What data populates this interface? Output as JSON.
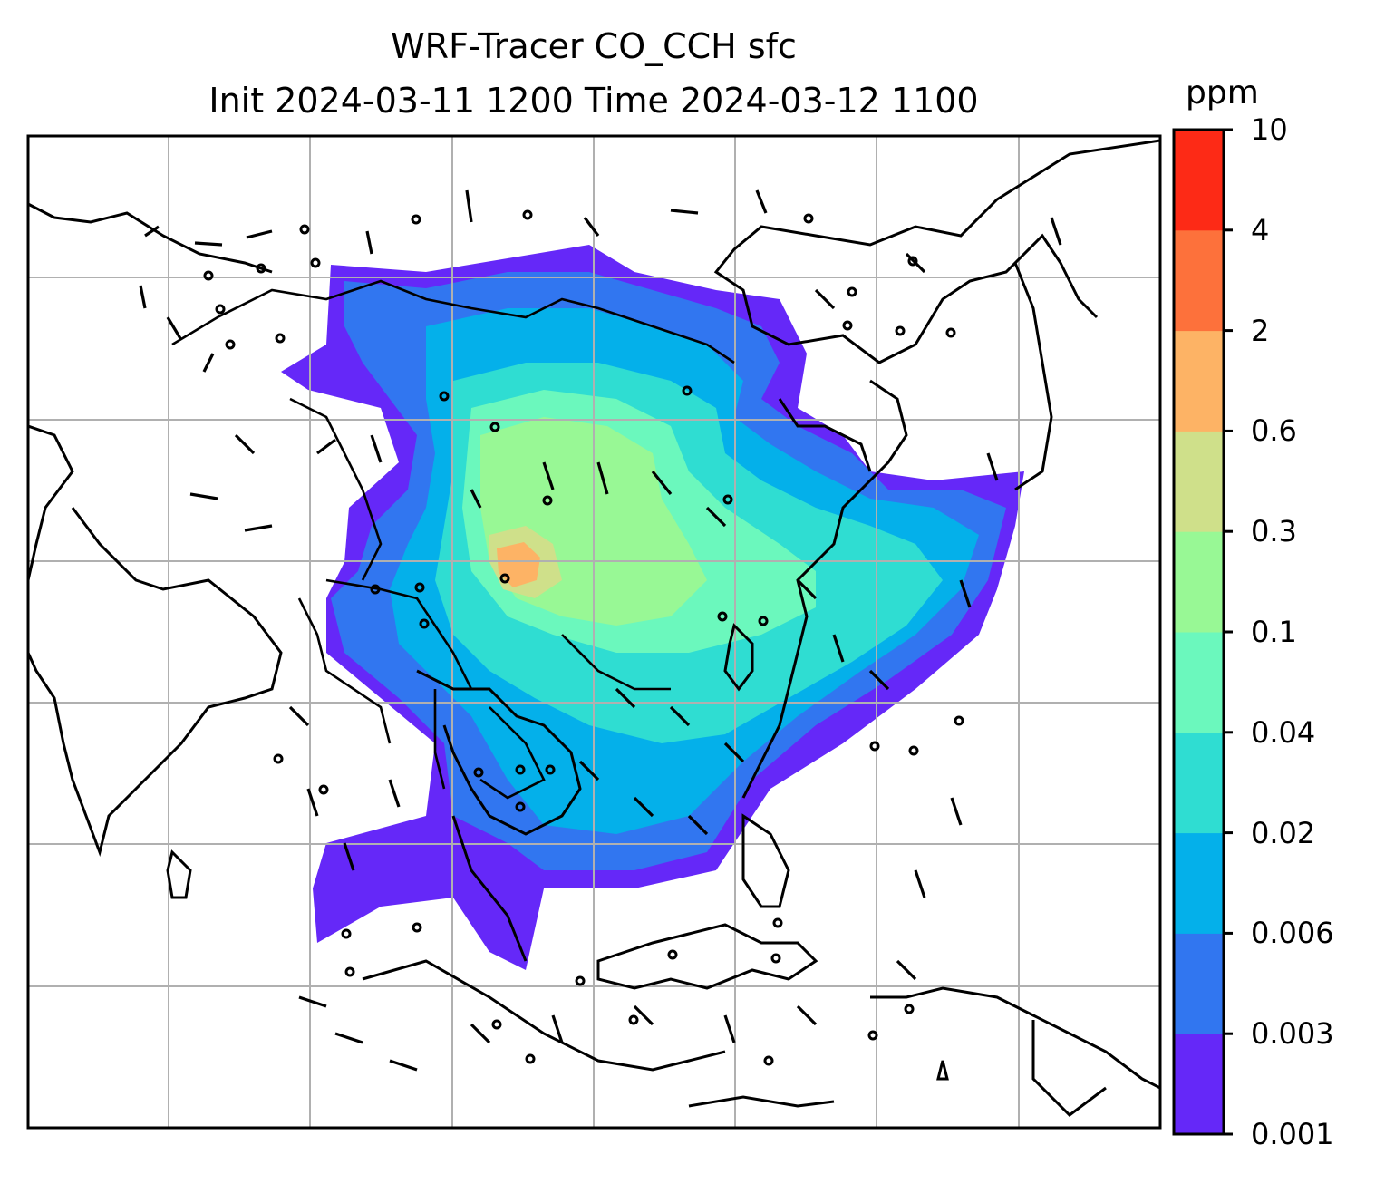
{
  "title": {
    "line1": "WRF-Tracer CO_CCH sfc",
    "line2": "Init 2024-03-11 1200 Time 2024-03-12 1100"
  },
  "colorbar": {
    "unit": "ppm",
    "levels": [
      "0.001",
      "0.003",
      "0.006",
      "0.02",
      "0.04",
      "0.1",
      "0.3",
      "0.6",
      "2",
      "4",
      "10"
    ],
    "colors": [
      "#6528f8",
      "#3176f0",
      "#04b0ea",
      "#2fddd2",
      "#6bf8bd",
      "#98f895",
      "#cfe08a",
      "#fdb365",
      "#fd713b",
      "#fd2a16"
    ]
  },
  "map": {
    "features": [
      "coastlines",
      "country-borders",
      "lat-lon-gridlines",
      "wind-barbs",
      "co-tracer-filled-contours"
    ]
  }
}
